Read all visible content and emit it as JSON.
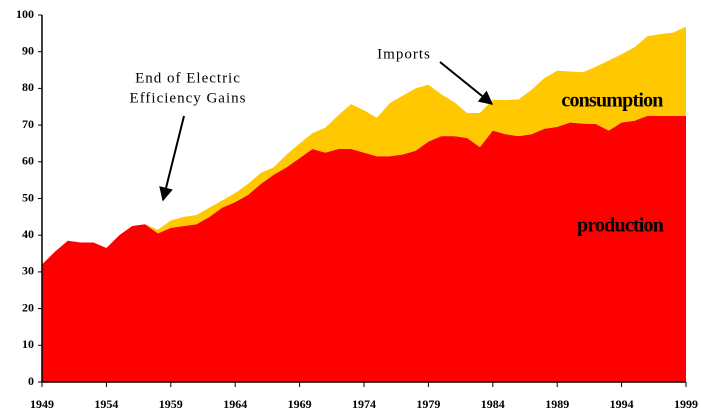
{
  "chart_data": {
    "type": "stacked-area",
    "x": [
      1949,
      1950,
      1951,
      1952,
      1953,
      1954,
      1955,
      1956,
      1957,
      1958,
      1959,
      1960,
      1961,
      1962,
      1963,
      1964,
      1965,
      1966,
      1967,
      1968,
      1969,
      1970,
      1971,
      1972,
      1973,
      1974,
      1975,
      1976,
      1977,
      1978,
      1979,
      1980,
      1981,
      1982,
      1983,
      1984,
      1985,
      1986,
      1987,
      1988,
      1989,
      1990,
      1991,
      1992,
      1993,
      1994,
      1995,
      1996,
      1997,
      1998,
      1999
    ],
    "series": [
      {
        "name": "production",
        "color": "#ff0000",
        "values": [
          32,
          35.5,
          38.5,
          38,
          38,
          36.5,
          40,
          42.5,
          43,
          40.5,
          42,
          42.5,
          43,
          45,
          47.5,
          49,
          51,
          54,
          56.5,
          58.5,
          61,
          63.5,
          62.5,
          63.5,
          63.5,
          62.5,
          61.5,
          61.5,
          62,
          63,
          65.5,
          67,
          67,
          66.5,
          64,
          68.5,
          67.5,
          67,
          67.5,
          69,
          69.5,
          70.7,
          70.4,
          70.3,
          68.5,
          70.7,
          71.2,
          72.5,
          72.5,
          72.5,
          72.5
        ]
      },
      {
        "name": "Imports",
        "color": "#ffc800",
        "values": [
          0,
          0,
          0,
          0,
          0,
          0,
          0,
          0,
          0,
          1,
          2,
          2.5,
          2.5,
          2.5,
          2,
          2.5,
          3,
          3,
          2,
          3.5,
          4,
          4.3,
          6.8,
          9.2,
          12.2,
          11.5,
          10.5,
          14.5,
          16,
          17,
          15.5,
          11.4,
          9.3,
          6.8,
          9.3,
          8.4,
          9.3,
          10,
          12.1,
          13.8,
          15.3,
          13.9,
          14,
          15.6,
          19.1,
          18.6,
          20,
          21.7,
          22.3,
          22.7,
          24.3
        ]
      }
    ],
    "annotations": [
      {
        "text": "consumption"
      },
      {
        "text": [
          "End of Electric",
          "Efficiency Gains"
        ]
      }
    ],
    "xlim": [
      1949,
      1999
    ],
    "xticks": [
      1949,
      1954,
      1959,
      1964,
      1969,
      1974,
      1979,
      1984,
      1989,
      1994,
      1999
    ],
    "ylim": [
      0,
      100
    ],
    "yticks": [
      0,
      10,
      20,
      30,
      40,
      50,
      60,
      70,
      80,
      90,
      100
    ]
  }
}
